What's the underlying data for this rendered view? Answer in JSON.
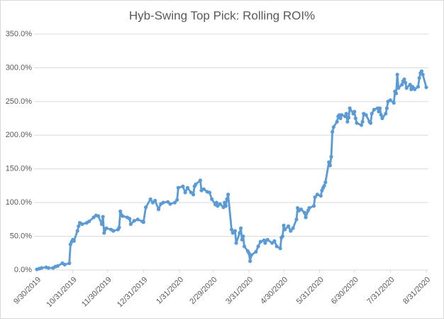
{
  "chart_data": {
    "type": "line",
    "title": "Hyb-Swing Top Pick: Rolling ROI%",
    "color": "#5b9bd5",
    "grid": true,
    "xlim": [
      "9/30/2019",
      "8/31/2020"
    ],
    "xticks": [
      "9/30/2019",
      "10/31/2019",
      "11/30/2019",
      "12/31/2019",
      "1/31/2020",
      "2/29/2020",
      "3/31/2020",
      "4/30/2020",
      "5/31/2020",
      "6/30/2020",
      "7/31/2020",
      "8/31/2020"
    ],
    "ylim": [
      0,
      350
    ],
    "yticks": [
      {
        "value": 0,
        "label": "0.0%"
      },
      {
        "value": 50,
        "label": "50.0%"
      },
      {
        "value": 100,
        "label": "100.0%"
      },
      {
        "value": 150,
        "label": "150.0%"
      },
      {
        "value": 200,
        "label": "200.0%"
      },
      {
        "value": 250,
        "label": "250.0%"
      },
      {
        "value": 300,
        "label": "300.0%"
      },
      {
        "value": 350,
        "label": "350.0%"
      }
    ],
    "x": [
      "9/30/2019",
      "10/2/2019",
      "10/4/2019",
      "10/8/2019",
      "10/10/2019",
      "10/14/2019",
      "10/16/2019",
      "10/18/2019",
      "10/22/2019",
      "10/24/2019",
      "10/28/2019",
      "10/29/2019",
      "10/30/2019",
      "10/31/2019",
      "11/1/2019",
      "11/4/2019",
      "11/5/2019",
      "11/6/2019",
      "11/8/2019",
      "11/12/2019",
      "11/14/2019",
      "11/18/2019",
      "11/20/2019",
      "11/22/2019",
      "11/25/2019",
      "11/26/2019",
      "11/27/2019",
      "11/29/2019",
      "12/3/2019",
      "12/5/2019",
      "12/9/2019",
      "12/10/2019",
      "12/11/2019",
      "12/13/2019",
      "12/17/2019",
      "12/19/2019",
      "12/20/2019",
      "12/23/2019",
      "12/26/2019",
      "12/30/2019",
      "12/31/2019",
      "1/2/2020",
      "1/6/2020",
      "1/8/2020",
      "1/10/2020",
      "1/13/2020",
      "1/15/2020",
      "1/17/2020",
      "1/21/2020",
      "1/23/2020",
      "1/27/2020",
      "1/29/2020",
      "1/30/2020",
      "2/3/2020",
      "2/5/2020",
      "2/7/2020",
      "2/10/2020",
      "2/12/2020",
      "2/13/2020",
      "2/14/2020",
      "2/18/2020",
      "2/19/2020",
      "2/21/2020",
      "2/24/2020",
      "2/26/2020",
      "2/28/2020",
      "3/2/2020",
      "3/3/2020",
      "3/4/2020",
      "3/6/2020",
      "3/9/2020",
      "3/10/2020",
      "3/11/2020",
      "3/12/2020",
      "3/13/2020",
      "3/16/2020",
      "3/17/2020",
      "3/19/2020",
      "3/20/2020",
      "3/23/2020",
      "3/24/2020",
      "3/25/2020",
      "3/26/2020",
      "3/27/2020",
      "3/30/2020",
      "3/31/2020",
      "4/1/2020",
      "4/2/2020",
      "4/6/2020",
      "4/8/2020",
      "4/10/2020",
      "4/13/2020",
      "4/14/2020",
      "4/16/2020",
      "4/20/2020",
      "4/22/2020",
      "4/24/2020",
      "4/27/2020",
      "4/28/2020",
      "4/29/2020",
      "4/30/2020",
      "5/1/2020",
      "5/4/2020",
      "5/6/2020",
      "5/8/2020",
      "5/11/2020",
      "5/12/2020",
      "5/13/2020",
      "5/15/2020",
      "5/18/2020",
      "5/19/2020",
      "5/21/2020",
      "5/22/2020",
      "5/26/2020",
      "5/27/2020",
      "5/29/2020",
      "6/1/2020",
      "6/2/2020",
      "6/3/2020",
      "6/4/2020",
      "6/5/2020",
      "6/8/2020",
      "6/9/2020",
      "6/10/2020",
      "6/11/2020",
      "6/12/2020",
      "6/15/2020",
      "6/16/2020",
      "6/17/2020",
      "6/18/2020",
      "6/19/2020",
      "6/22/2020",
      "6/23/2020",
      "6/24/2020",
      "6/25/2020",
      "6/26/2020",
      "6/29/2020",
      "6/30/2020",
      "7/1/2020",
      "7/2/2020",
      "7/6/2020",
      "7/7/2020",
      "7/8/2020",
      "7/10/2020",
      "7/13/2020",
      "7/14/2020",
      "7/15/2020",
      "7/17/2020",
      "7/20/2020",
      "7/21/2020",
      "7/22/2020",
      "7/23/2020",
      "7/24/2020",
      "7/27/2020",
      "7/28/2020",
      "7/29/2020",
      "7/31/2020",
      "8/3/2020",
      "8/4/2020",
      "8/5/2020",
      "8/6/2020",
      "8/7/2020",
      "8/10/2020",
      "8/11/2020",
      "8/12/2020",
      "8/13/2020",
      "8/14/2020",
      "8/17/2020",
      "8/18/2020",
      "8/19/2020",
      "8/20/2020",
      "8/21/2020",
      "8/24/2020",
      "8/25/2020",
      "8/26/2020",
      "8/27/2020",
      "8/28/2020",
      "8/31/2020"
    ],
    "values": [
      1,
      2,
      3,
      4,
      3,
      3,
      5,
      6,
      10,
      8,
      10,
      38,
      42,
      45,
      43,
      58,
      65,
      70,
      68,
      70,
      72,
      78,
      81,
      80,
      68,
      79,
      55,
      62,
      60,
      58,
      60,
      63,
      87,
      80,
      78,
      76,
      68,
      73,
      75,
      72,
      71,
      93,
      105,
      100,
      103,
      90,
      98,
      100,
      101,
      98,
      100,
      104,
      122,
      124,
      115,
      122,
      115,
      112,
      124,
      127,
      133,
      118,
      120,
      116,
      115,
      105,
      97,
      100,
      95,
      98,
      93,
      100,
      95,
      105,
      112,
      60,
      55,
      58,
      40,
      55,
      62,
      45,
      50,
      35,
      28,
      25,
      13,
      22,
      27,
      35,
      42,
      44,
      40,
      45,
      40,
      43,
      35,
      32,
      48,
      50,
      66,
      60,
      65,
      58,
      62,
      75,
      92,
      88,
      90,
      85,
      78,
      88,
      92,
      95,
      108,
      112,
      110,
      118,
      122,
      125,
      130,
      160,
      155,
      168,
      205,
      212,
      220,
      228,
      230,
      225,
      230,
      228,
      232,
      220,
      226,
      240,
      232,
      235,
      225,
      218,
      215,
      220,
      232,
      230,
      220,
      218,
      232,
      238,
      240,
      235,
      240,
      230,
      225,
      232,
      240,
      250,
      252,
      248,
      265,
      262,
      290,
      270,
      275,
      280,
      283,
      278,
      270,
      275,
      268,
      272,
      270,
      268,
      272,
      285,
      292,
      295,
      290,
      271
    ]
  }
}
